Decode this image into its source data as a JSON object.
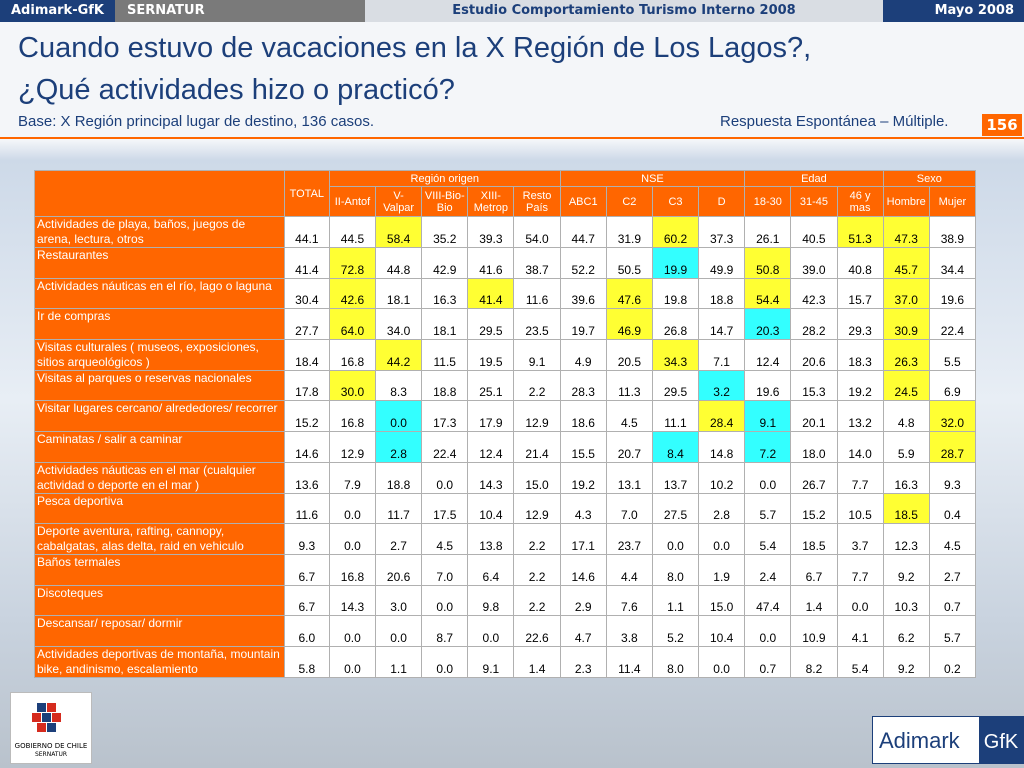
{
  "header": {
    "left": "Adimark-GfK",
    "client": "SERNATUR",
    "study": "Estudio Comportamiento Turismo Interno 2008",
    "date": "Mayo 2008"
  },
  "title": [
    "Cuando estuvo de vacaciones en la X Región de Los Lagos?,",
    "¿Qué actividades hizo o practicó?"
  ],
  "base": "Base: X Región principal lugar de destino, 136 casos.",
  "note": "Respuesta Espontánea – Múltiple.",
  "page": "156",
  "highlight_colors": {
    "y": "#ffff33",
    "c": "#33ffff"
  },
  "table": {
    "total": "TOTAL",
    "groups": [
      {
        "name": "Región origen",
        "columns": [
          "II-Antof",
          "V- Valpar",
          "VIII-Bio- Bio",
          "XIII- Metrop",
          "Resto País"
        ]
      },
      {
        "name": "NSE",
        "columns": [
          "ABC1",
          "C2",
          "C3",
          "D"
        ]
      },
      {
        "name": "Edad",
        "columns": [
          "18-30",
          "31-45",
          "46 y mas"
        ]
      },
      {
        "name": "Sexo",
        "columns": [
          "Hombre",
          "Mujer"
        ]
      }
    ],
    "rows": [
      {
        "label": "Actividades de playa, baños, juegos de arena, lectura, otros",
        "values": [
          "44.1",
          "44.5",
          "58.4",
          "35.2",
          "39.3",
          "54.0",
          "44.7",
          "31.9",
          "60.2",
          "37.3",
          "26.1",
          "40.5",
          "51.3",
          "47.3",
          "38.9"
        ],
        "highlight": [
          null,
          null,
          "y",
          null,
          null,
          null,
          null,
          null,
          "y",
          null,
          null,
          null,
          "y",
          "y",
          null
        ]
      },
      {
        "label": "Restaurantes",
        "values": [
          "41.4",
          "72.8",
          "44.8",
          "42.9",
          "41.6",
          "38.7",
          "52.2",
          "50.5",
          "19.9",
          "49.9",
          "50.8",
          "39.0",
          "40.8",
          "45.7",
          "34.4"
        ],
        "highlight": [
          null,
          "y",
          null,
          null,
          null,
          null,
          null,
          null,
          "c",
          null,
          "y",
          null,
          null,
          "y",
          null
        ]
      },
      {
        "label": "Actividades náuticas en el río, lago o laguna",
        "values": [
          "30.4",
          "42.6",
          "18.1",
          "16.3",
          "41.4",
          "11.6",
          "39.6",
          "47.6",
          "19.8",
          "18.8",
          "54.4",
          "42.3",
          "15.7",
          "37.0",
          "19.6"
        ],
        "highlight": [
          null,
          "y",
          null,
          null,
          "y",
          null,
          null,
          "y",
          null,
          null,
          "y",
          null,
          null,
          "y",
          null
        ]
      },
      {
        "label": "Ir de compras",
        "values": [
          "27.7",
          "64.0",
          "34.0",
          "18.1",
          "29.5",
          "23.5",
          "19.7",
          "46.9",
          "26.8",
          "14.7",
          "20.3",
          "28.2",
          "29.3",
          "30.9",
          "22.4"
        ],
        "highlight": [
          null,
          "y",
          null,
          null,
          null,
          null,
          null,
          "y",
          null,
          null,
          "c",
          null,
          null,
          "y",
          null
        ]
      },
      {
        "label": "Visitas culturales ( museos, exposiciones, sitios arqueológicos )",
        "values": [
          "18.4",
          "16.8",
          "44.2",
          "11.5",
          "19.5",
          "9.1",
          "4.9",
          "20.5",
          "34.3",
          "7.1",
          "12.4",
          "20.6",
          "18.3",
          "26.3",
          "5.5"
        ],
        "highlight": [
          null,
          null,
          "y",
          null,
          null,
          null,
          null,
          null,
          "y",
          null,
          null,
          null,
          null,
          "y",
          null
        ]
      },
      {
        "label": "Visitas al parques o reservas nacionales",
        "values": [
          "17.8",
          "30.0",
          "8.3",
          "18.8",
          "25.1",
          "2.2",
          "28.3",
          "11.3",
          "29.5",
          "3.2",
          "19.6",
          "15.3",
          "19.2",
          "24.5",
          "6.9"
        ],
        "highlight": [
          null,
          "y",
          null,
          null,
          null,
          null,
          null,
          null,
          null,
          "c",
          null,
          null,
          null,
          "y",
          null
        ]
      },
      {
        "label": "Visitar lugares cercano/ alrededores/ recorrer",
        "values": [
          "15.2",
          "16.8",
          "0.0",
          "17.3",
          "17.9",
          "12.9",
          "18.6",
          "4.5",
          "11.1",
          "28.4",
          "9.1",
          "20.1",
          "13.2",
          "4.8",
          "32.0"
        ],
        "highlight": [
          null,
          null,
          "c",
          null,
          null,
          null,
          null,
          null,
          null,
          "y",
          "c",
          null,
          null,
          null,
          "y"
        ]
      },
      {
        "label": "Caminatas / salir a caminar",
        "values": [
          "14.6",
          "12.9",
          "2.8",
          "22.4",
          "12.4",
          "21.4",
          "15.5",
          "20.7",
          "8.4",
          "14.8",
          "7.2",
          "18.0",
          "14.0",
          "5.9",
          "28.7"
        ],
        "highlight": [
          null,
          null,
          "c",
          null,
          null,
          null,
          null,
          null,
          "c",
          null,
          "c",
          null,
          null,
          null,
          "y"
        ]
      },
      {
        "label": "Actividades náuticas en el mar (cualquier actividad o deporte en el mar )",
        "values": [
          "13.6",
          "7.9",
          "18.8",
          "0.0",
          "14.3",
          "15.0",
          "19.2",
          "13.1",
          "13.7",
          "10.2",
          "0.0",
          "26.7",
          "7.7",
          "16.3",
          "9.3"
        ],
        "highlight": [
          null,
          null,
          null,
          null,
          null,
          null,
          null,
          null,
          null,
          null,
          null,
          null,
          null,
          null,
          null
        ]
      },
      {
        "label": "Pesca deportiva",
        "values": [
          "11.6",
          "0.0",
          "11.7",
          "17.5",
          "10.4",
          "12.9",
          "4.3",
          "7.0",
          "27.5",
          "2.8",
          "5.7",
          "15.2",
          "10.5",
          "18.5",
          "0.4"
        ],
        "highlight": [
          null,
          null,
          null,
          null,
          null,
          null,
          null,
          null,
          null,
          null,
          null,
          null,
          null,
          "y",
          null
        ]
      },
      {
        "label": "Deporte aventura, rafting, cannopy, cabalgatas, alas delta, raid en vehiculo",
        "values": [
          "9.3",
          "0.0",
          "2.7",
          "4.5",
          "13.8",
          "2.2",
          "17.1",
          "23.7",
          "0.0",
          "0.0",
          "5.4",
          "18.5",
          "3.7",
          "12.3",
          "4.5"
        ],
        "highlight": [
          null,
          null,
          null,
          null,
          null,
          null,
          null,
          null,
          null,
          null,
          null,
          null,
          null,
          null,
          null
        ]
      },
      {
        "label": "Baños termales",
        "values": [
          "6.7",
          "16.8",
          "20.6",
          "7.0",
          "6.4",
          "2.2",
          "14.6",
          "4.4",
          "8.0",
          "1.9",
          "2.4",
          "6.7",
          "7.7",
          "9.2",
          "2.7"
        ],
        "highlight": [
          null,
          null,
          null,
          null,
          null,
          null,
          null,
          null,
          null,
          null,
          null,
          null,
          null,
          null,
          null
        ]
      },
      {
        "label": "Discoteques",
        "values": [
          "6.7",
          "14.3",
          "3.0",
          "0.0",
          "9.8",
          "2.2",
          "2.9",
          "7.6",
          "1.1",
          "15.0",
          "47.4",
          "1.4",
          "0.0",
          "10.3",
          "0.7"
        ],
        "highlight": [
          null,
          null,
          null,
          null,
          null,
          null,
          null,
          null,
          null,
          null,
          null,
          null,
          null,
          null,
          null
        ]
      },
      {
        "label": "Descansar/ reposar/ dormir",
        "values": [
          "6.0",
          "0.0",
          "0.0",
          "8.7",
          "0.0",
          "22.6",
          "4.7",
          "3.8",
          "5.2",
          "10.4",
          "0.0",
          "10.9",
          "4.1",
          "6.2",
          "5.7"
        ],
        "highlight": [
          null,
          null,
          null,
          null,
          null,
          null,
          null,
          null,
          null,
          null,
          null,
          null,
          null,
          null,
          null
        ]
      },
      {
        "label": "Actividades deportivas de montaña, mountain bike, andinismo, escalamiento",
        "values": [
          "5.8",
          "0.0",
          "1.1",
          "0.0",
          "9.1",
          "1.4",
          "2.3",
          "11.4",
          "8.0",
          "0.0",
          "0.7",
          "8.2",
          "5.4",
          "9.2",
          "0.2"
        ],
        "highlight": [
          null,
          null,
          null,
          null,
          null,
          null,
          null,
          null,
          null,
          null,
          null,
          null,
          null,
          null,
          null
        ]
      }
    ]
  },
  "logos": {
    "gov": "GOBIERNO DE CHILE",
    "gov_sub": "SERNATUR",
    "brand": "Adimark",
    "brand2": "GfK"
  }
}
